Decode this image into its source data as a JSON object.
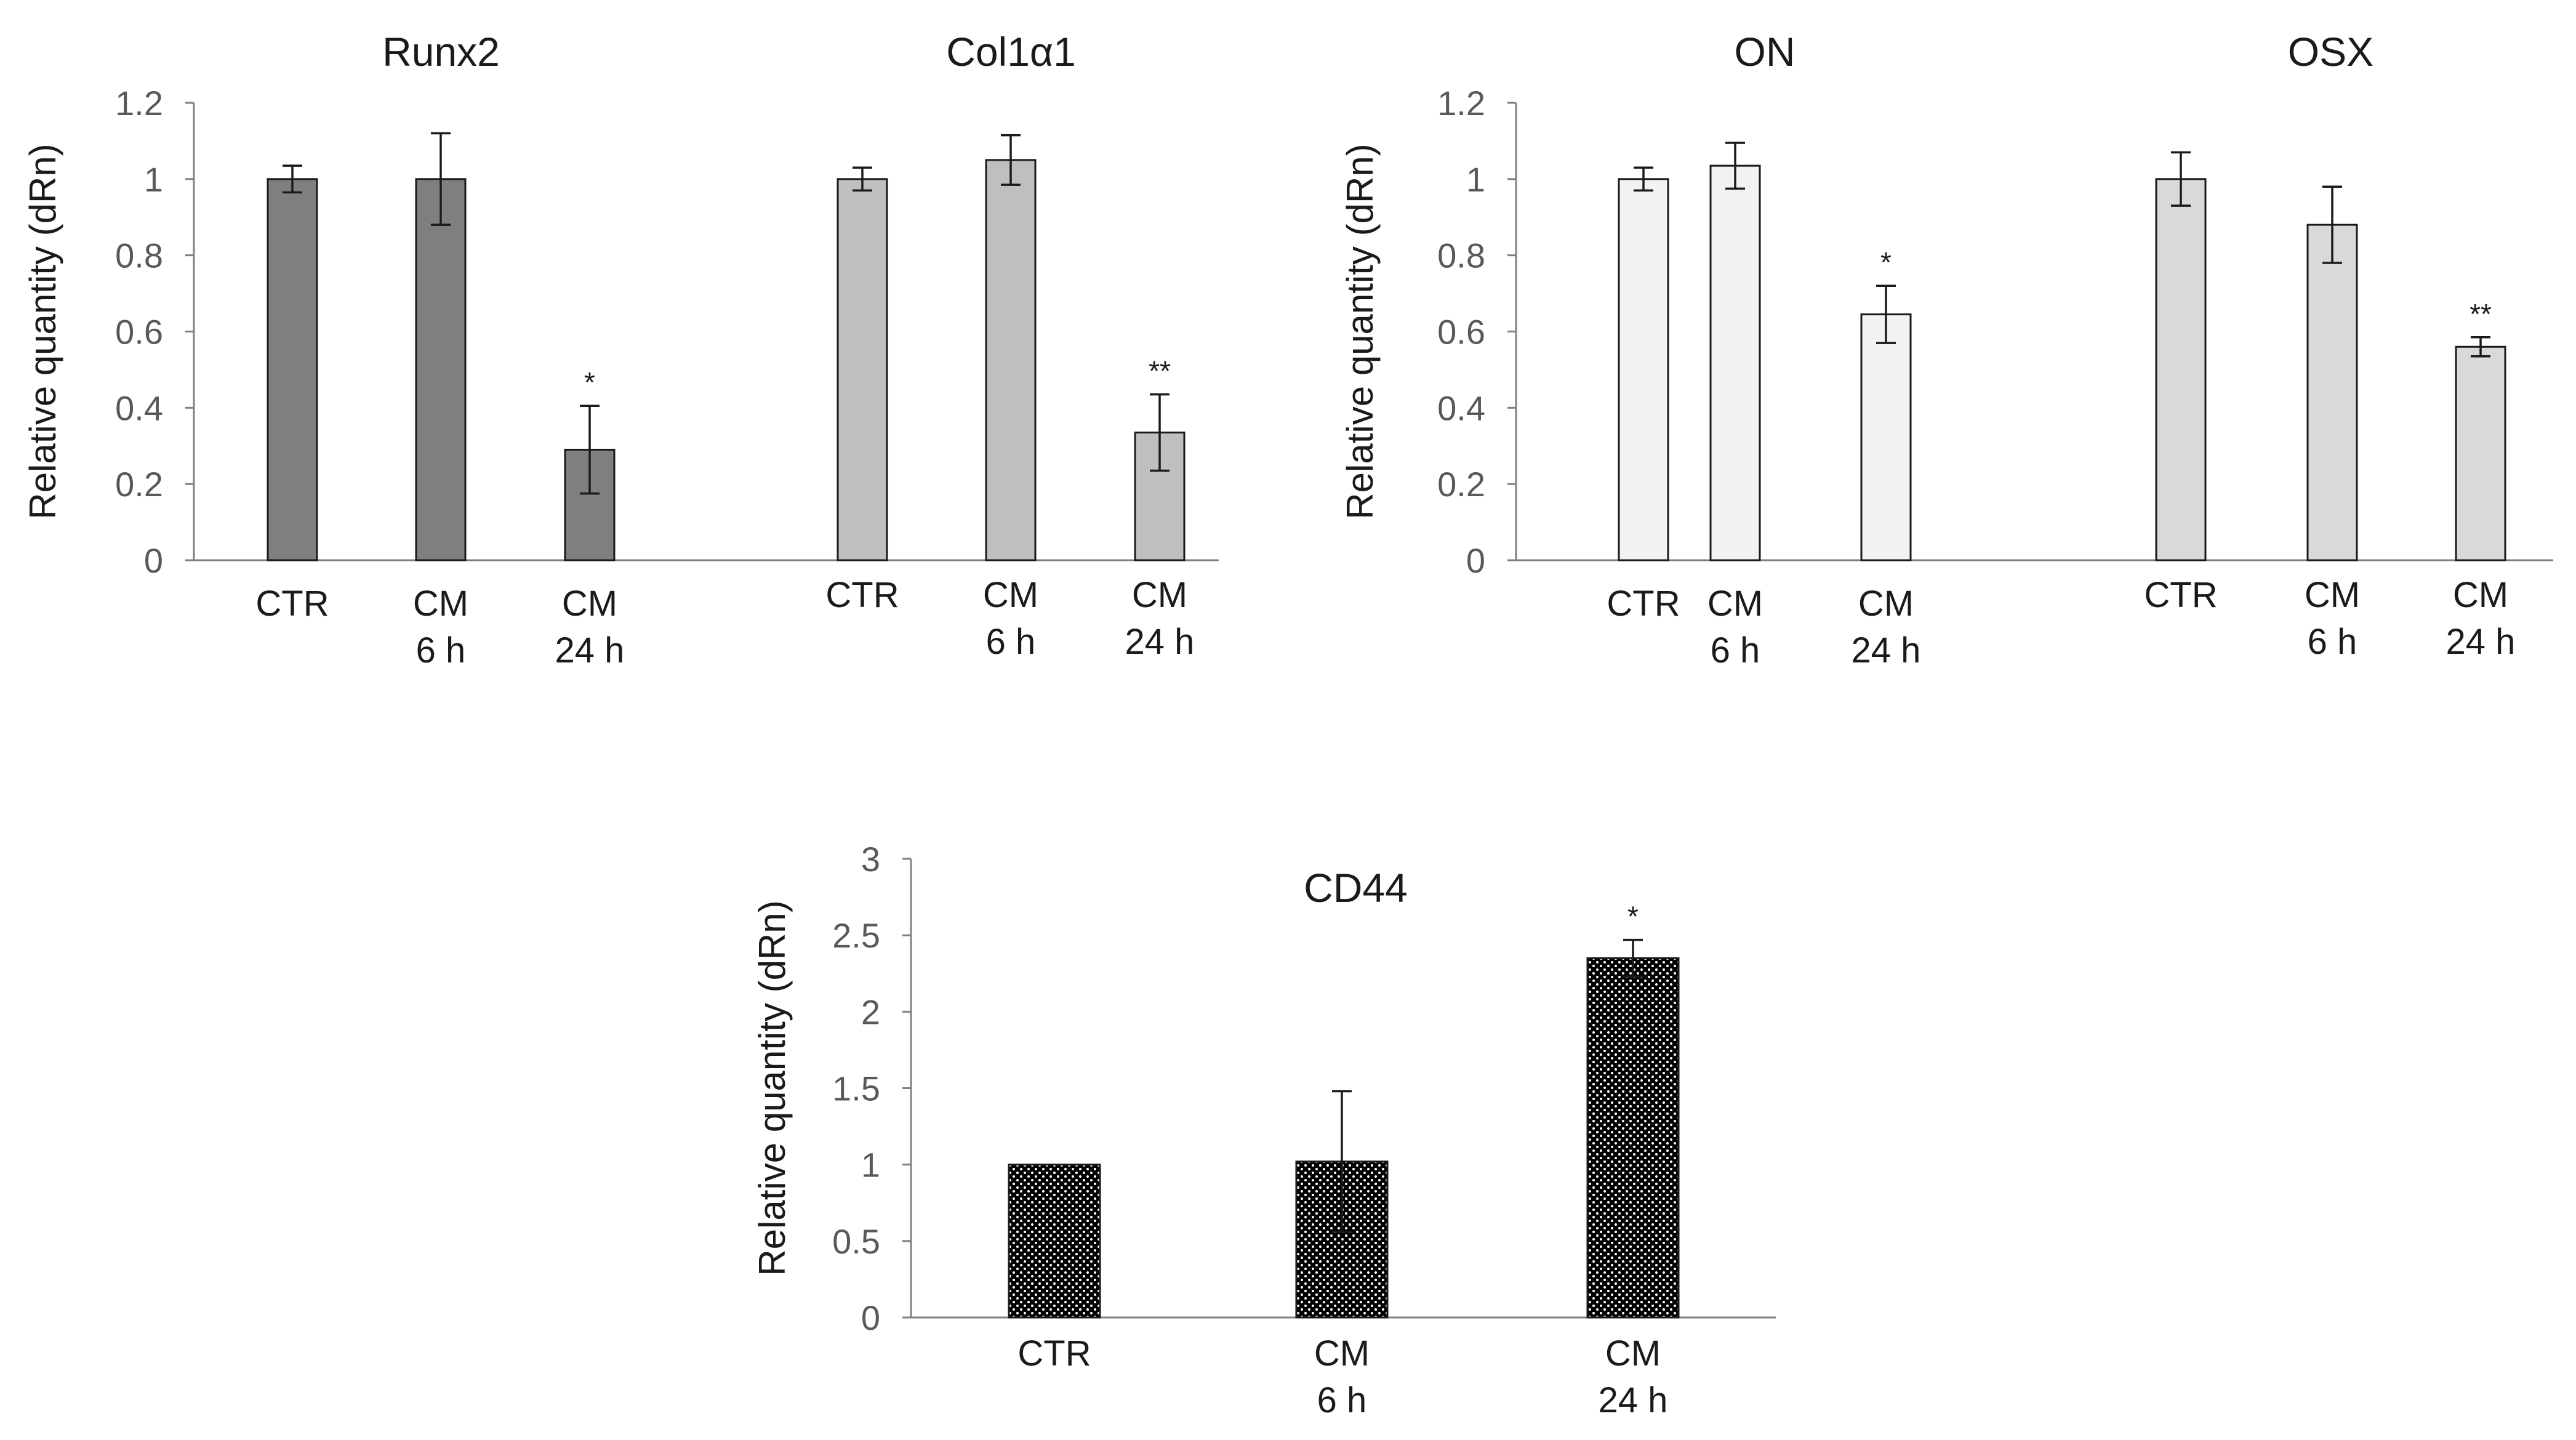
{
  "colors": {
    "runx2": "#7f7f7f",
    "col1a1": "#bfbfbf",
    "on": "#f2f2f2",
    "osx": "#d9d9d9",
    "cd44_pattern": "dotted-black"
  },
  "chart_data": [
    {
      "type": "bar",
      "title": "",
      "ylabel": "Relative quantity (dRn)",
      "ylim": [
        0,
        1.2
      ],
      "yticks": [
        "0",
        "0.2",
        "0.4",
        "0.6",
        "0.8",
        "1",
        "1.2"
      ],
      "groups": [
        {
          "title": "Runx2",
          "color": "#7f7f7f",
          "categories": [
            "CTR",
            "CM\n6 h",
            "CM\n24 h"
          ],
          "values": [
            1.0,
            1.0,
            0.29
          ],
          "errors": [
            0.035,
            0.12,
            0.115
          ],
          "significance": [
            "",
            "",
            "*"
          ]
        },
        {
          "title": "Col1α1",
          "color": "#bfbfbf",
          "categories": [
            "CTR",
            "CM\n6 h",
            "CM\n24 h"
          ],
          "values": [
            1.0,
            1.05,
            0.335
          ],
          "errors": [
            0.03,
            0.065,
            0.1
          ],
          "significance": [
            "",
            "",
            "**"
          ]
        }
      ]
    },
    {
      "type": "bar",
      "title": "",
      "ylabel": "Relative quantity (dRn)",
      "ylim": [
        0,
        1.2
      ],
      "yticks": [
        "0",
        "0.2",
        "0.4",
        "0.6",
        "0.8",
        "1",
        "1.2"
      ],
      "groups": [
        {
          "title": "ON",
          "color": "#f2f2f2",
          "categories": [
            "CTR",
            "CM\n6 h",
            "CM\n24 h"
          ],
          "values": [
            1.0,
            1.035,
            0.645
          ],
          "errors": [
            0.03,
            0.06,
            0.075
          ],
          "significance": [
            "",
            "",
            "*"
          ]
        },
        {
          "title": "OSX",
          "color": "#d9d9d9",
          "categories": [
            "CTR",
            "CM\n6 h",
            "CM\n24 h"
          ],
          "values": [
            1.0,
            0.88,
            0.56
          ],
          "errors": [
            0.07,
            0.1,
            0.025
          ],
          "significance": [
            "",
            "",
            "**"
          ]
        }
      ]
    },
    {
      "type": "bar",
      "title": "CD44",
      "ylabel": "Relative quantity (dRn)",
      "ylim": [
        0,
        3
      ],
      "yticks": [
        "0",
        "0.5",
        "1",
        "1.5",
        "2",
        "2.5",
        "3"
      ],
      "categories": [
        "CTR",
        "CM\n6 h",
        "CM\n24 h"
      ],
      "values": [
        1.0,
        1.02,
        2.35
      ],
      "errors": [
        0,
        0.46,
        0.12
      ],
      "significance": [
        "",
        "",
        "*"
      ]
    }
  ]
}
